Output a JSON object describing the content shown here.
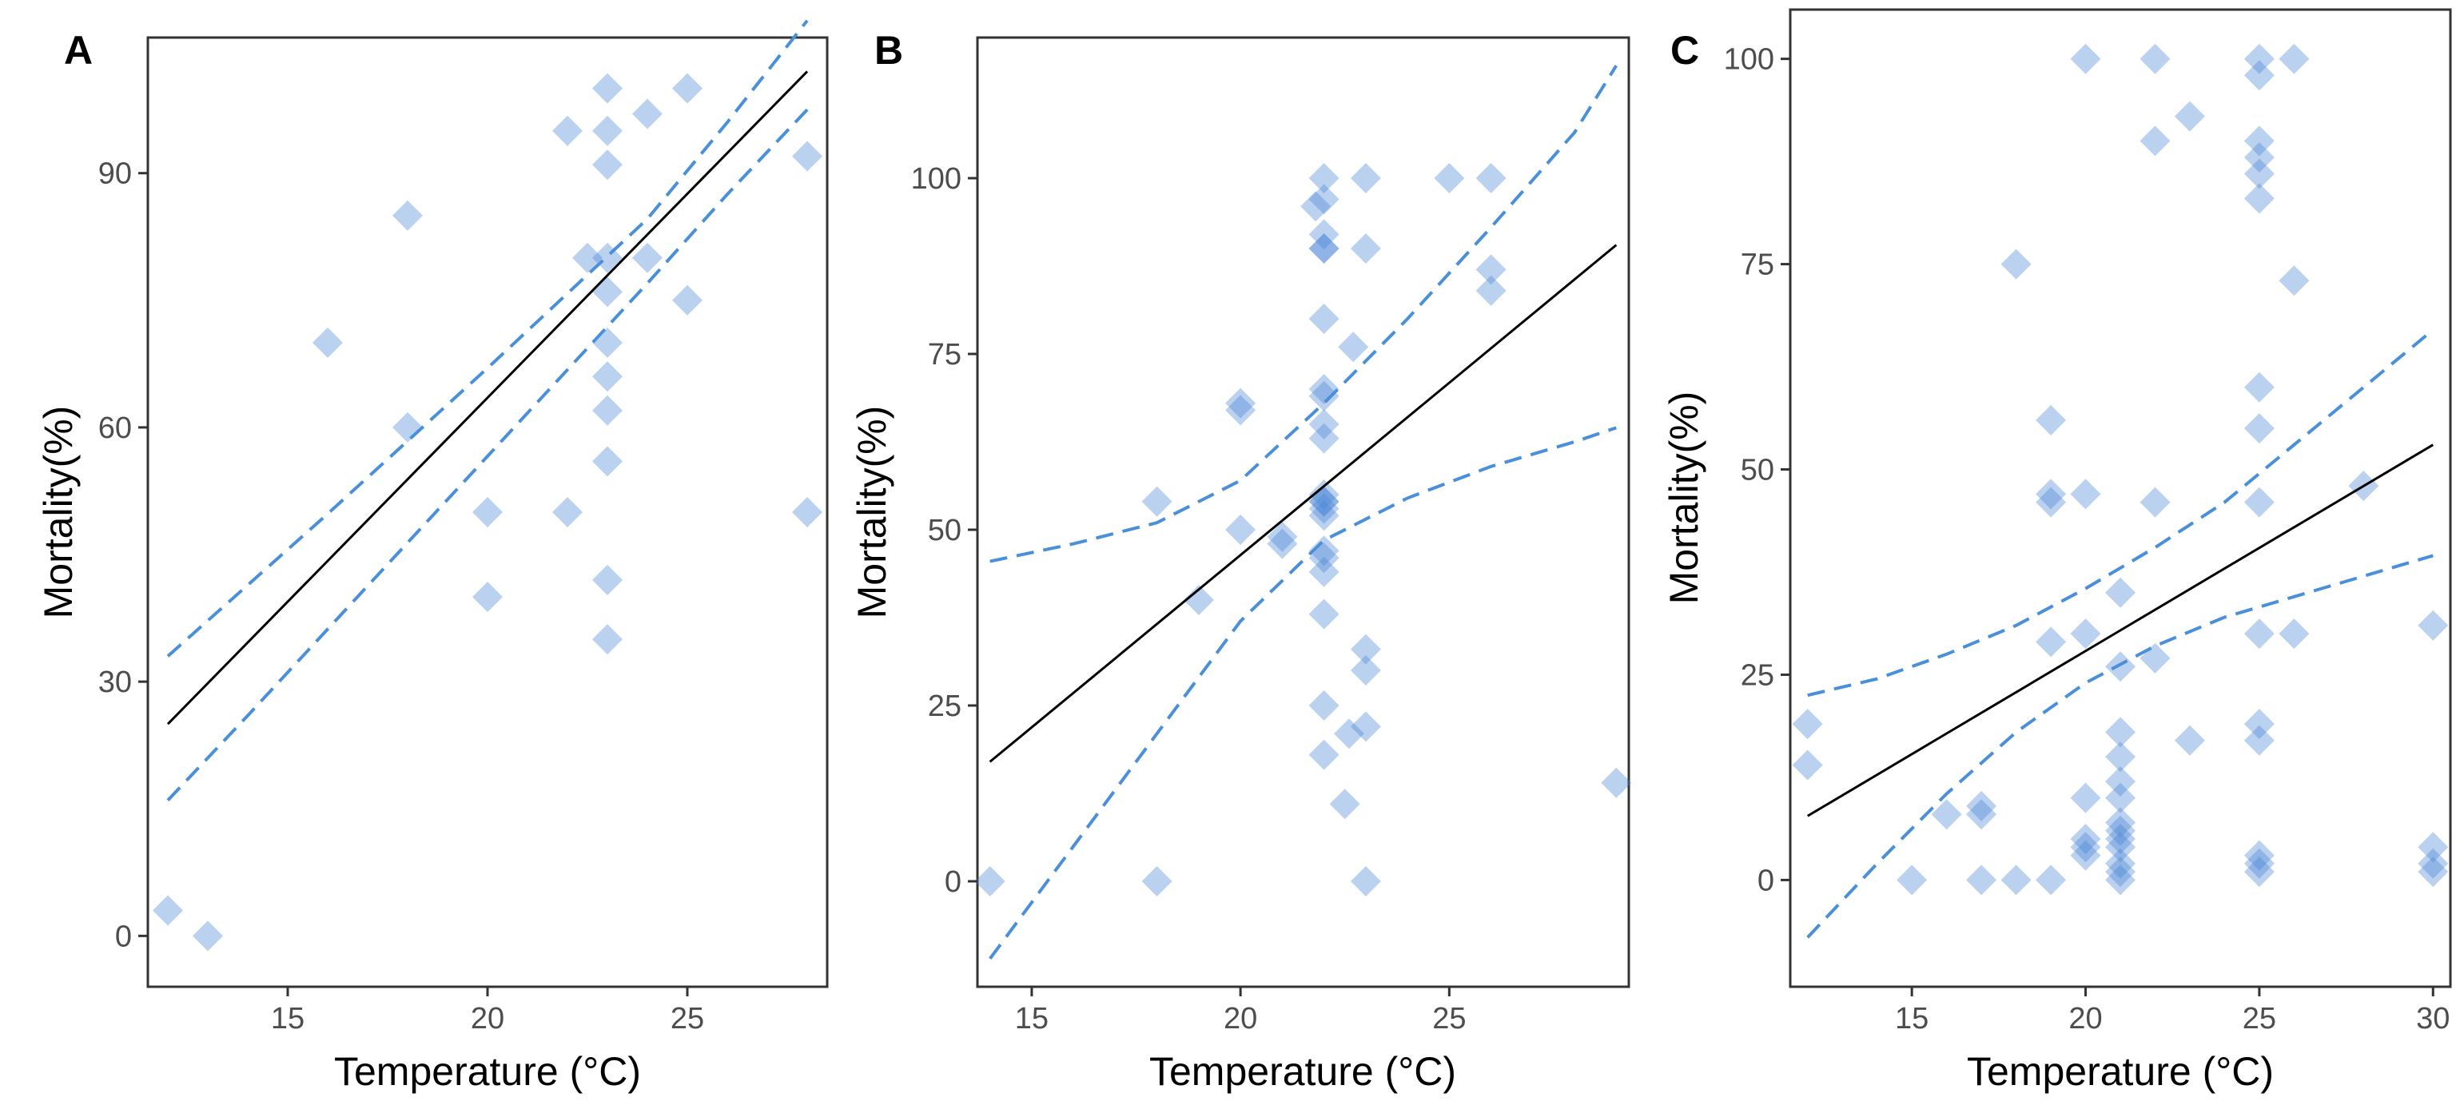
{
  "figure": {
    "point_color": "#4a86d4",
    "line_color": "#000000",
    "ci_color": "#4a8fd9"
  },
  "chart_data": [
    {
      "type": "scatter",
      "panel": "A",
      "xlabel": "Temperature (°C)",
      "ylabel": "Mortality(%)",
      "xlim": [
        11.5,
        28.5
      ],
      "ylim": [
        -6,
        106
      ],
      "xticks": [
        15,
        20,
        25
      ],
      "yticks": [
        0,
        30,
        60,
        90
      ],
      "x": [
        12,
        13,
        16,
        18,
        18,
        20,
        20,
        22,
        22,
        22.5,
        23,
        23,
        23,
        23,
        23,
        23,
        23,
        23,
        23,
        23,
        23,
        24,
        24,
        25,
        25,
        28,
        28
      ],
      "y": [
        3,
        0,
        70,
        85,
        60,
        50,
        40,
        95,
        50,
        80,
        100,
        95,
        91,
        80,
        76,
        70,
        66,
        62,
        56,
        42,
        35,
        97,
        80,
        100,
        75,
        92,
        50
      ],
      "fit": {
        "x": [
          12,
          28
        ],
        "y": [
          25,
          102
        ]
      },
      "ci_upper": {
        "x": [
          12,
          14,
          16,
          18,
          20,
          22,
          24,
          26,
          28
        ],
        "y": [
          33,
          41.4,
          49.8,
          58.4,
          67,
          75.8,
          84.6,
          96,
          108
        ]
      },
      "ci_lower": {
        "x": [
          12,
          14,
          16,
          18,
          20,
          22,
          24,
          26,
          28
        ],
        "y": [
          16,
          26,
          36.2,
          46.4,
          56.6,
          66.8,
          77,
          87.5,
          97.5
        ]
      }
    },
    {
      "type": "scatter",
      "panel": "B",
      "xlabel": "Temperature (°C)",
      "ylabel": "Mortality(%)",
      "xlim": [
        13.7,
        29.3
      ],
      "ylim": [
        -15,
        120
      ],
      "xticks": [
        15,
        20,
        25
      ],
      "yticks": [
        0,
        25,
        50,
        75,
        100
      ],
      "x": [
        14,
        18,
        18,
        19,
        20,
        20,
        20,
        21,
        21,
        21.8,
        22,
        22,
        22,
        22,
        22,
        22,
        22,
        22,
        22,
        22,
        22,
        22,
        22,
        22,
        22,
        22,
        22,
        22,
        22,
        22,
        22,
        22.5,
        22.6,
        22.7,
        23,
        23,
        23,
        23,
        23,
        23,
        25,
        26,
        26,
        26,
        29
      ],
      "y": [
        0,
        54,
        0,
        40,
        68,
        67,
        50,
        49,
        48,
        96,
        100,
        97,
        92,
        90,
        80,
        70,
        69,
        65,
        63,
        55,
        54,
        53,
        52,
        47,
        46,
        44,
        38,
        25,
        18,
        54,
        90,
        11,
        21,
        76,
        100,
        90,
        33,
        30,
        22,
        0,
        100,
        100,
        87,
        84,
        14
      ],
      "fit": {
        "x": [
          14,
          29
        ],
        "y": [
          17,
          90.5
        ]
      },
      "ci_upper": {
        "x": [
          14,
          16,
          18,
          20,
          22,
          24,
          26,
          28,
          29
        ],
        "y": [
          45.5,
          48,
          51,
          57,
          68,
          80,
          93,
          106.5,
          116
        ]
      },
      "ci_lower": {
        "x": [
          14,
          16,
          18,
          20,
          22,
          24,
          26,
          28,
          29
        ],
        "y": [
          -11,
          5,
          21,
          37,
          48.5,
          54.5,
          59,
          62.5,
          64.5
        ]
      }
    },
    {
      "type": "scatter",
      "panel": "C",
      "xlabel": "Temperature (°C)",
      "ylabel": "Mortality(%)",
      "xlim": [
        11.5,
        30.5
      ],
      "ylim": [
        -13,
        106
      ],
      "xticks": [
        15,
        20,
        25,
        30
      ],
      "yticks": [
        0,
        25,
        50,
        75,
        100
      ],
      "x": [
        12,
        12,
        15,
        16,
        17,
        17,
        17,
        18,
        18,
        19,
        19,
        19,
        19,
        19,
        20,
        20,
        20,
        20,
        20,
        20,
        20,
        21,
        21,
        21,
        21,
        21,
        21,
        21,
        21,
        21,
        21,
        21,
        21,
        21,
        22,
        22,
        22,
        22,
        23,
        23,
        25,
        25,
        25,
        25,
        25,
        25,
        25,
        25,
        25,
        25,
        25,
        25,
        25,
        25,
        25,
        26,
        26,
        26,
        28,
        30,
        30,
        30,
        30
      ],
      "y": [
        19,
        14,
        0,
        8,
        9,
        8,
        0,
        75,
        0,
        56,
        47,
        46,
        29,
        0,
        100,
        47,
        30,
        10,
        5,
        4,
        3,
        35,
        26,
        18,
        15,
        12,
        10,
        7,
        6,
        5,
        4,
        2,
        1,
        0,
        100,
        90,
        46,
        27,
        93,
        17,
        100,
        98,
        90,
        88,
        86,
        83,
        60,
        55,
        46,
        30,
        19,
        17,
        3,
        2,
        1,
        100,
        73,
        30,
        48,
        31,
        4,
        2,
        1
      ],
      "fit": {
        "x": [
          12,
          30
        ],
        "y": [
          7.8,
          53
        ]
      },
      "ci_upper": {
        "x": [
          12,
          14,
          16,
          18,
          20,
          22,
          24,
          26,
          28,
          30
        ],
        "y": [
          22.5,
          24.5,
          27.5,
          31,
          35.5,
          40.5,
          46,
          53,
          60,
          67
        ]
      },
      "ci_lower": {
        "x": [
          12,
          14,
          16,
          18,
          20,
          22,
          24,
          26,
          28,
          30
        ],
        "y": [
          -7,
          2,
          10.5,
          18,
          24,
          28.5,
          32,
          34.5,
          37,
          39.5
        ]
      }
    }
  ]
}
